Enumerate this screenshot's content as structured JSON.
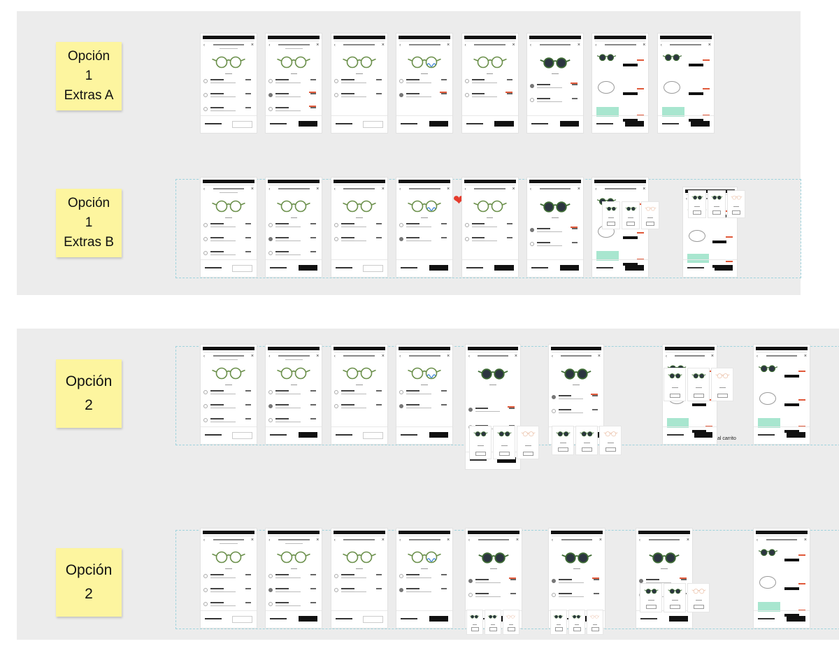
{
  "sections": {
    "top": {
      "notes": [
        {
          "lines": [
            "Opción",
            "1",
            "Extras A"
          ]
        },
        {
          "lines": [
            "Opción",
            "1",
            "Extras B"
          ]
        }
      ]
    },
    "bottom": {
      "notes": [
        {
          "lines": [
            "Opción",
            "2"
          ]
        },
        {
          "lines": [
            "Opción",
            "2"
          ]
        }
      ]
    }
  },
  "annotations": {
    "partial_text": "al carrito"
  },
  "colors": {
    "board": "#ececec",
    "sticky": "#fdf59f",
    "frame_link": "#9fd3dd",
    "lens_green": "#6a8f4a",
    "lens_dark": "#2c3540",
    "price_strike": "#e0593a",
    "teal_box": "#a8e6cf",
    "heart": "#e53b2c"
  }
}
